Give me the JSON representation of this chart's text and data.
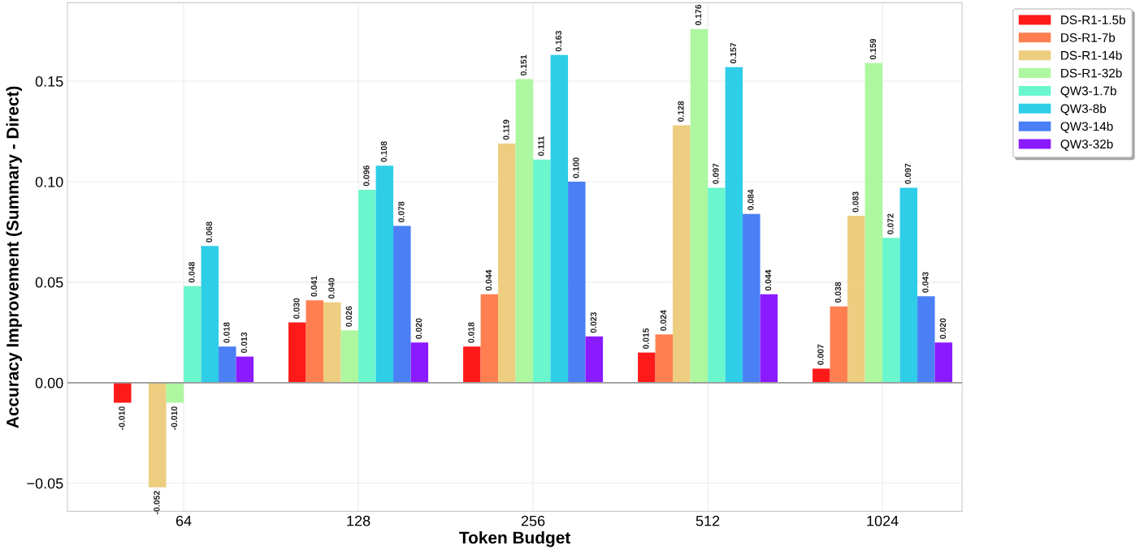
{
  "chart_data": {
    "type": "bar",
    "xlabel": "Token Budget",
    "ylabel": "Accuracy Improvement (Summary - Direct)",
    "categories": [
      "64",
      "128",
      "256",
      "512",
      "1024"
    ],
    "ylim": [
      -0.064,
      0.189
    ],
    "yticks": [
      {
        "value": -0.05,
        "label": "−0.05"
      },
      {
        "value": 0,
        "label": "0.00"
      },
      {
        "value": 0.05,
        "label": "0.05"
      },
      {
        "value": 0.1,
        "label": "0.10"
      },
      {
        "value": 0.15,
        "label": "0.15"
      }
    ],
    "grid": true,
    "legend": "top right",
    "ref_lines": [
      {
        "axis": "y",
        "value": 0,
        "color": "#999999"
      }
    ],
    "series": [
      {
        "name": "DS-R1-1.5b",
        "color": "#ff1a1a",
        "values": [
          -0.01,
          0.03,
          0.018,
          0.015,
          0.007
        ],
        "value_labels": [
          "-0.010",
          "0.030",
          "0.018",
          "0.015",
          "0.007"
        ]
      },
      {
        "name": "DS-R1-7b",
        "color": "#ff7f50",
        "values": [
          0.0,
          0.041,
          0.044,
          0.024,
          0.038
        ],
        "value_labels": [
          null,
          "0.041",
          "0.044",
          "0.024",
          "0.038"
        ]
      },
      {
        "name": "DS-R1-14b",
        "color": "#edcd7f",
        "values": [
          -0.052,
          0.04,
          0.119,
          0.128,
          0.083
        ],
        "value_labels": [
          "-0.052",
          "0.040",
          "0.119",
          "0.128",
          "0.083"
        ]
      },
      {
        "name": "DS-R1-32b",
        "color": "#adf7a0",
        "values": [
          -0.01,
          0.026,
          0.151,
          0.176,
          0.159
        ],
        "value_labels": [
          "-0.010",
          "0.026",
          "0.151",
          "0.176",
          "0.159"
        ]
      },
      {
        "name": "QW3-1.7b",
        "color": "#6af7cd",
        "values": [
          0.048,
          0.096,
          0.111,
          0.097,
          0.072
        ],
        "value_labels": [
          "0.048",
          "0.096",
          "0.111",
          "0.097",
          "0.072"
        ]
      },
      {
        "name": "QW3-8b",
        "color": "#2ecde8",
        "values": [
          0.068,
          0.108,
          0.163,
          0.157,
          0.097
        ],
        "value_labels": [
          "0.068",
          "0.108",
          "0.163",
          "0.157",
          "0.097"
        ]
      },
      {
        "name": "QW3-14b",
        "color": "#4b7ff5",
        "values": [
          0.018,
          0.078,
          0.1,
          0.084,
          0.043
        ],
        "value_labels": [
          "0.018",
          "0.078",
          "0.100",
          "0.084",
          "0.043"
        ]
      },
      {
        "name": "QW3-32b",
        "color": "#8b1aff",
        "values": [
          0.013,
          0.02,
          0.023,
          0.044,
          0.02
        ],
        "value_labels": [
          "0.013",
          "0.020",
          "0.023",
          "0.044",
          "0.020"
        ]
      }
    ]
  }
}
